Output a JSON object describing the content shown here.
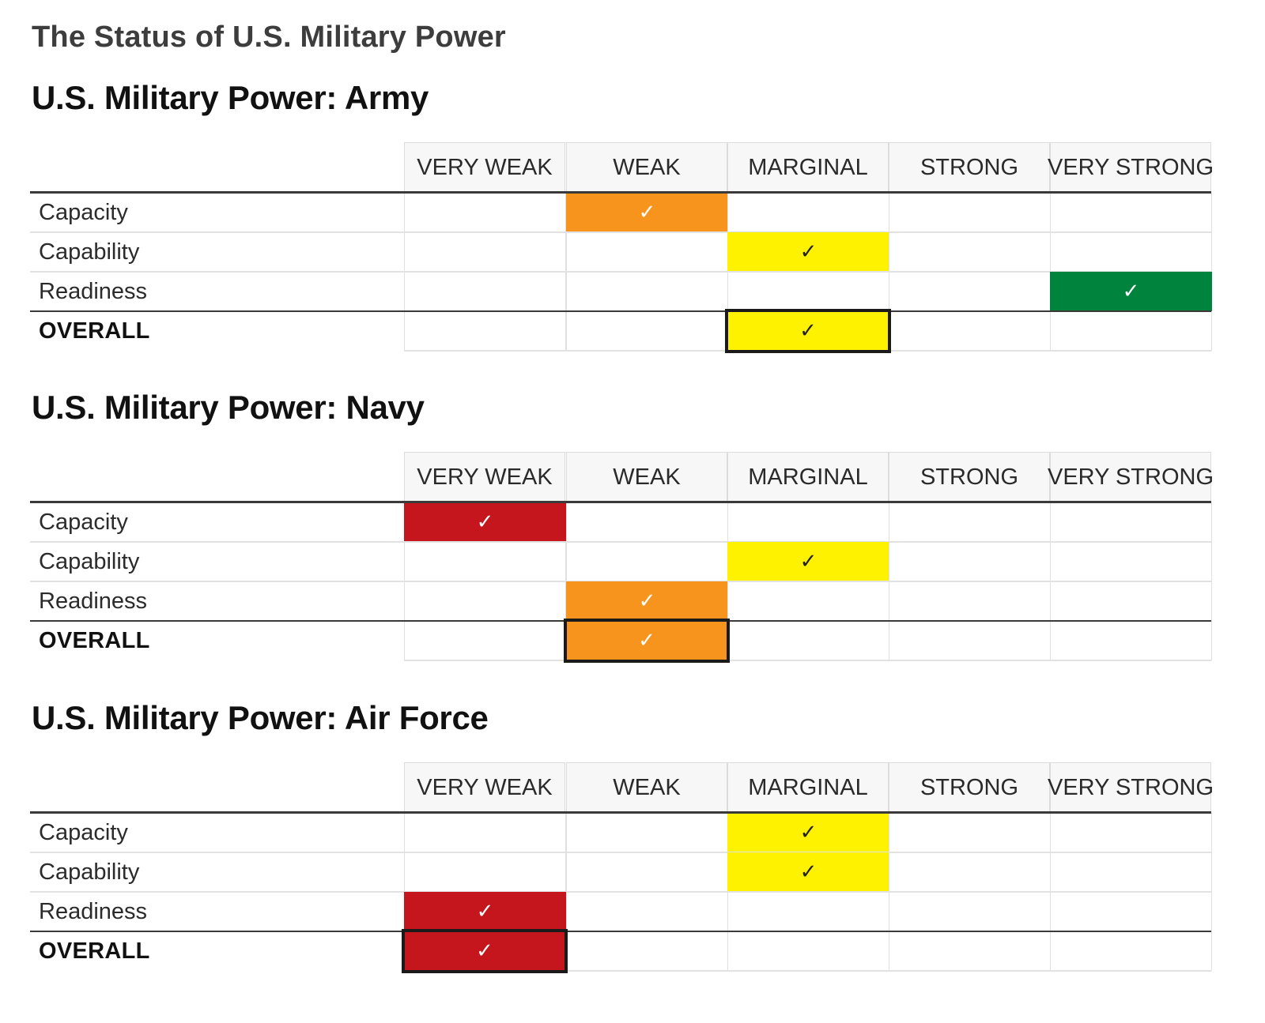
{
  "page_title": "The Status of U.S. Military Power",
  "check_glyph": "✓",
  "colors": {
    "VERY WEAK": "#c4161c",
    "WEAK": "#f7941d",
    "MARGINAL": "#fff200",
    "STRONG": "#8dc63f",
    "VERY STRONG": "#00843d"
  },
  "check_colors": {
    "VERY WEAK": "#ffffff",
    "WEAK": "#ffffff",
    "MARGINAL": "#222222",
    "STRONG": "#ffffff",
    "VERY STRONG": "#ffffff"
  },
  "chart_data": [
    {
      "type": "table",
      "title": "U.S. Military Power: Army",
      "columns": [
        "VERY WEAK",
        "WEAK",
        "MARGINAL",
        "STRONG",
        "VERY STRONG"
      ],
      "rows": [
        {
          "label": "Capacity",
          "rating": "WEAK"
        },
        {
          "label": "Capability",
          "rating": "MARGINAL"
        },
        {
          "label": "Readiness",
          "rating": "VERY STRONG"
        },
        {
          "label": "OVERALL",
          "rating": "MARGINAL"
        }
      ]
    },
    {
      "type": "table",
      "title": "U.S. Military Power: Navy",
      "columns": [
        "VERY WEAK",
        "WEAK",
        "MARGINAL",
        "STRONG",
        "VERY STRONG"
      ],
      "rows": [
        {
          "label": "Capacity",
          "rating": "VERY WEAK"
        },
        {
          "label": "Capability",
          "rating": "MARGINAL"
        },
        {
          "label": "Readiness",
          "rating": "WEAK"
        },
        {
          "label": "OVERALL",
          "rating": "WEAK"
        }
      ]
    },
    {
      "type": "table",
      "title": "U.S. Military Power: Air Force",
      "columns": [
        "VERY WEAK",
        "WEAK",
        "MARGINAL",
        "STRONG",
        "VERY STRONG"
      ],
      "rows": [
        {
          "label": "Capacity",
          "rating": "MARGINAL"
        },
        {
          "label": "Capability",
          "rating": "MARGINAL"
        },
        {
          "label": "Readiness",
          "rating": "VERY WEAK"
        },
        {
          "label": "OVERALL",
          "rating": "VERY WEAK"
        }
      ]
    }
  ]
}
